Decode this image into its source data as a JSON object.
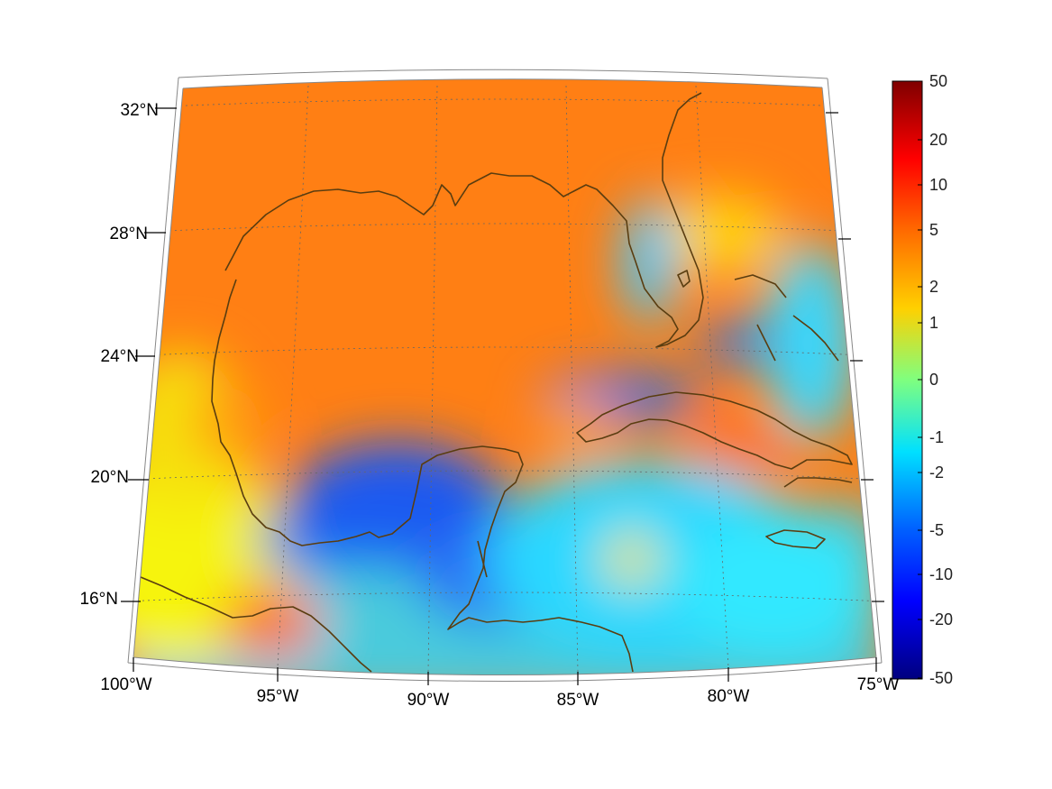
{
  "map": {
    "region": "Gulf of Mexico and Caribbean",
    "lon_range": [
      -100,
      -75
    ],
    "lat_range": [
      14,
      33
    ],
    "grid": true,
    "longitude_labels": [
      "100°W",
      "95°W",
      "90°W",
      "85°W",
      "80°W",
      "75°W"
    ],
    "latitude_labels": [
      "32°N",
      "28°N",
      "24°N",
      "20°N",
      "16°N"
    ],
    "coastline_color": "#5a3d10"
  },
  "colorbar": {
    "colormap": "jet",
    "scale": "symmetric-log",
    "labels": [
      "50",
      "20",
      "10",
      "5",
      "2",
      "1",
      "0",
      "-1",
      "-2",
      "-5",
      "-10",
      "-20",
      "-50"
    ],
    "range": [
      -50,
      50
    ],
    "position": "right"
  },
  "colors": {
    "dominant_gulf": "#ff7a10",
    "negative_areas": "#1b62f0",
    "neutral": "#ffff00"
  }
}
